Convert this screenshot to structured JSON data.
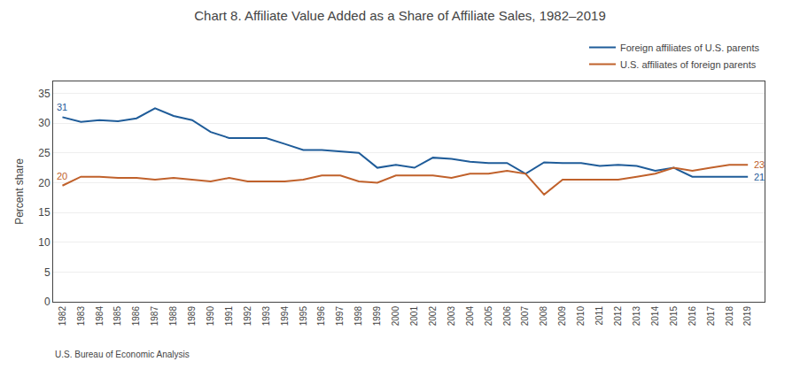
{
  "chart_data": {
    "type": "line",
    "title": "Chart 8. Affiliate Value Added as a Share of Affiliate Sales, 1982–2019",
    "y_label": "Percent share",
    "source": "U.S. Bureau of Economic Analysis",
    "x": [
      1982,
      1983,
      1984,
      1985,
      1986,
      1987,
      1988,
      1989,
      1990,
      1991,
      1992,
      1993,
      1994,
      1995,
      1996,
      1997,
      1998,
      1999,
      2000,
      2001,
      2002,
      2003,
      2004,
      2005,
      2006,
      2007,
      2008,
      2009,
      2010,
      2011,
      2012,
      2013,
      2014,
      2015,
      2016,
      2017,
      2018,
      2019
    ],
    "series": [
      {
        "name": "Foreign affiliates of U.S. parents",
        "color": "#1F5C99",
        "values": [
          31.0,
          30.2,
          30.5,
          30.3,
          30.8,
          32.5,
          31.2,
          30.5,
          28.5,
          27.5,
          27.5,
          27.5,
          26.5,
          25.5,
          25.5,
          25.2,
          25.0,
          22.5,
          23.0,
          22.5,
          24.2,
          24.0,
          23.5,
          23.3,
          23.3,
          21.5,
          23.4,
          23.3,
          23.3,
          22.8,
          23.0,
          22.8,
          22.0,
          22.5,
          21.0,
          21.0,
          21.0,
          21.0
        ]
      },
      {
        "name": "U.S. affiliates of foreign parents",
        "color": "#C0612B",
        "values": [
          19.5,
          21.0,
          21.0,
          20.8,
          20.8,
          20.5,
          20.8,
          20.5,
          20.2,
          20.8,
          20.2,
          20.2,
          20.2,
          20.5,
          21.2,
          21.2,
          20.2,
          20.0,
          21.2,
          21.2,
          21.2,
          20.8,
          21.5,
          21.5,
          22.0,
          21.5,
          18.0,
          20.5,
          20.5,
          20.5,
          20.5,
          21.0,
          21.5,
          22.5,
          22.0,
          22.5,
          23.0,
          23.0
        ]
      }
    ],
    "annotations": [
      {
        "text": "31",
        "x": 1982,
        "y": 31.0,
        "color": "#1F5C99"
      },
      {
        "text": "20",
        "x": 1982,
        "y": 19.5,
        "color": "#C0612B"
      },
      {
        "text": "23",
        "x": 2019,
        "y": 23.0,
        "color": "#C0612B"
      },
      {
        "text": "21",
        "x": 2019,
        "y": 21.0,
        "color": "#1F5C99"
      }
    ],
    "xlim": [
      1981.5,
      2019.9
    ],
    "xticks": [
      1982,
      1983,
      1984,
      1985,
      1986,
      1987,
      1988,
      1989,
      1990,
      1991,
      1992,
      1993,
      1994,
      1995,
      1996,
      1997,
      1998,
      1999,
      2000,
      2001,
      2002,
      2003,
      2004,
      2005,
      2006,
      2007,
      2008,
      2009,
      2010,
      2011,
      2012,
      2013,
      2014,
      2015,
      2016,
      2017,
      2018,
      2019
    ],
    "ylim": [
      0,
      37
    ],
    "yticks": [
      0,
      5,
      10,
      15,
      20,
      25,
      30,
      35
    ],
    "grid": "y",
    "legend": "upper right"
  }
}
